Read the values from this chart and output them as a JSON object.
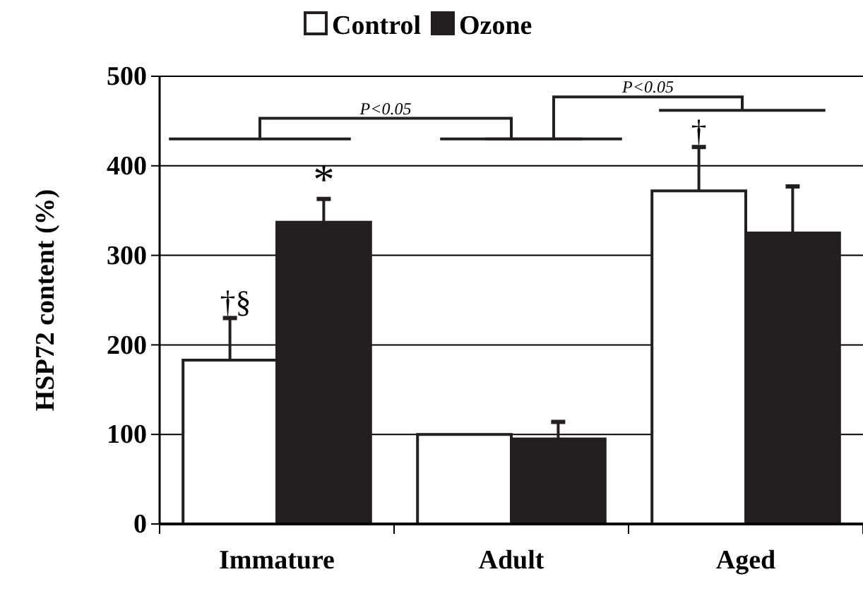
{
  "chart_data": {
    "type": "bar",
    "ylabel": "HSP72 content (%)",
    "categories": [
      "Immature",
      "Adult",
      "Aged"
    ],
    "series": [
      {
        "name": "Control",
        "color": "#ffffff",
        "values": [
          183,
          100,
          372
        ],
        "errors": [
          [
            183,
            230
          ],
          null,
          [
            372,
            421
          ]
        ]
      },
      {
        "name": "Ozone",
        "color": "#231f20",
        "values": [
          337,
          95,
          325
        ],
        "errors": [
          [
            337,
            363
          ],
          [
            95,
            114
          ],
          [
            325,
            377
          ]
        ]
      }
    ],
    "ylim": [
      0,
      500
    ],
    "yticks": [
      0,
      100,
      200,
      300,
      400,
      500
    ],
    "grid": "y",
    "legend": "top",
    "annotations": [
      "P<0.05",
      "P<0.05",
      "†§",
      "*",
      "†"
    ]
  }
}
